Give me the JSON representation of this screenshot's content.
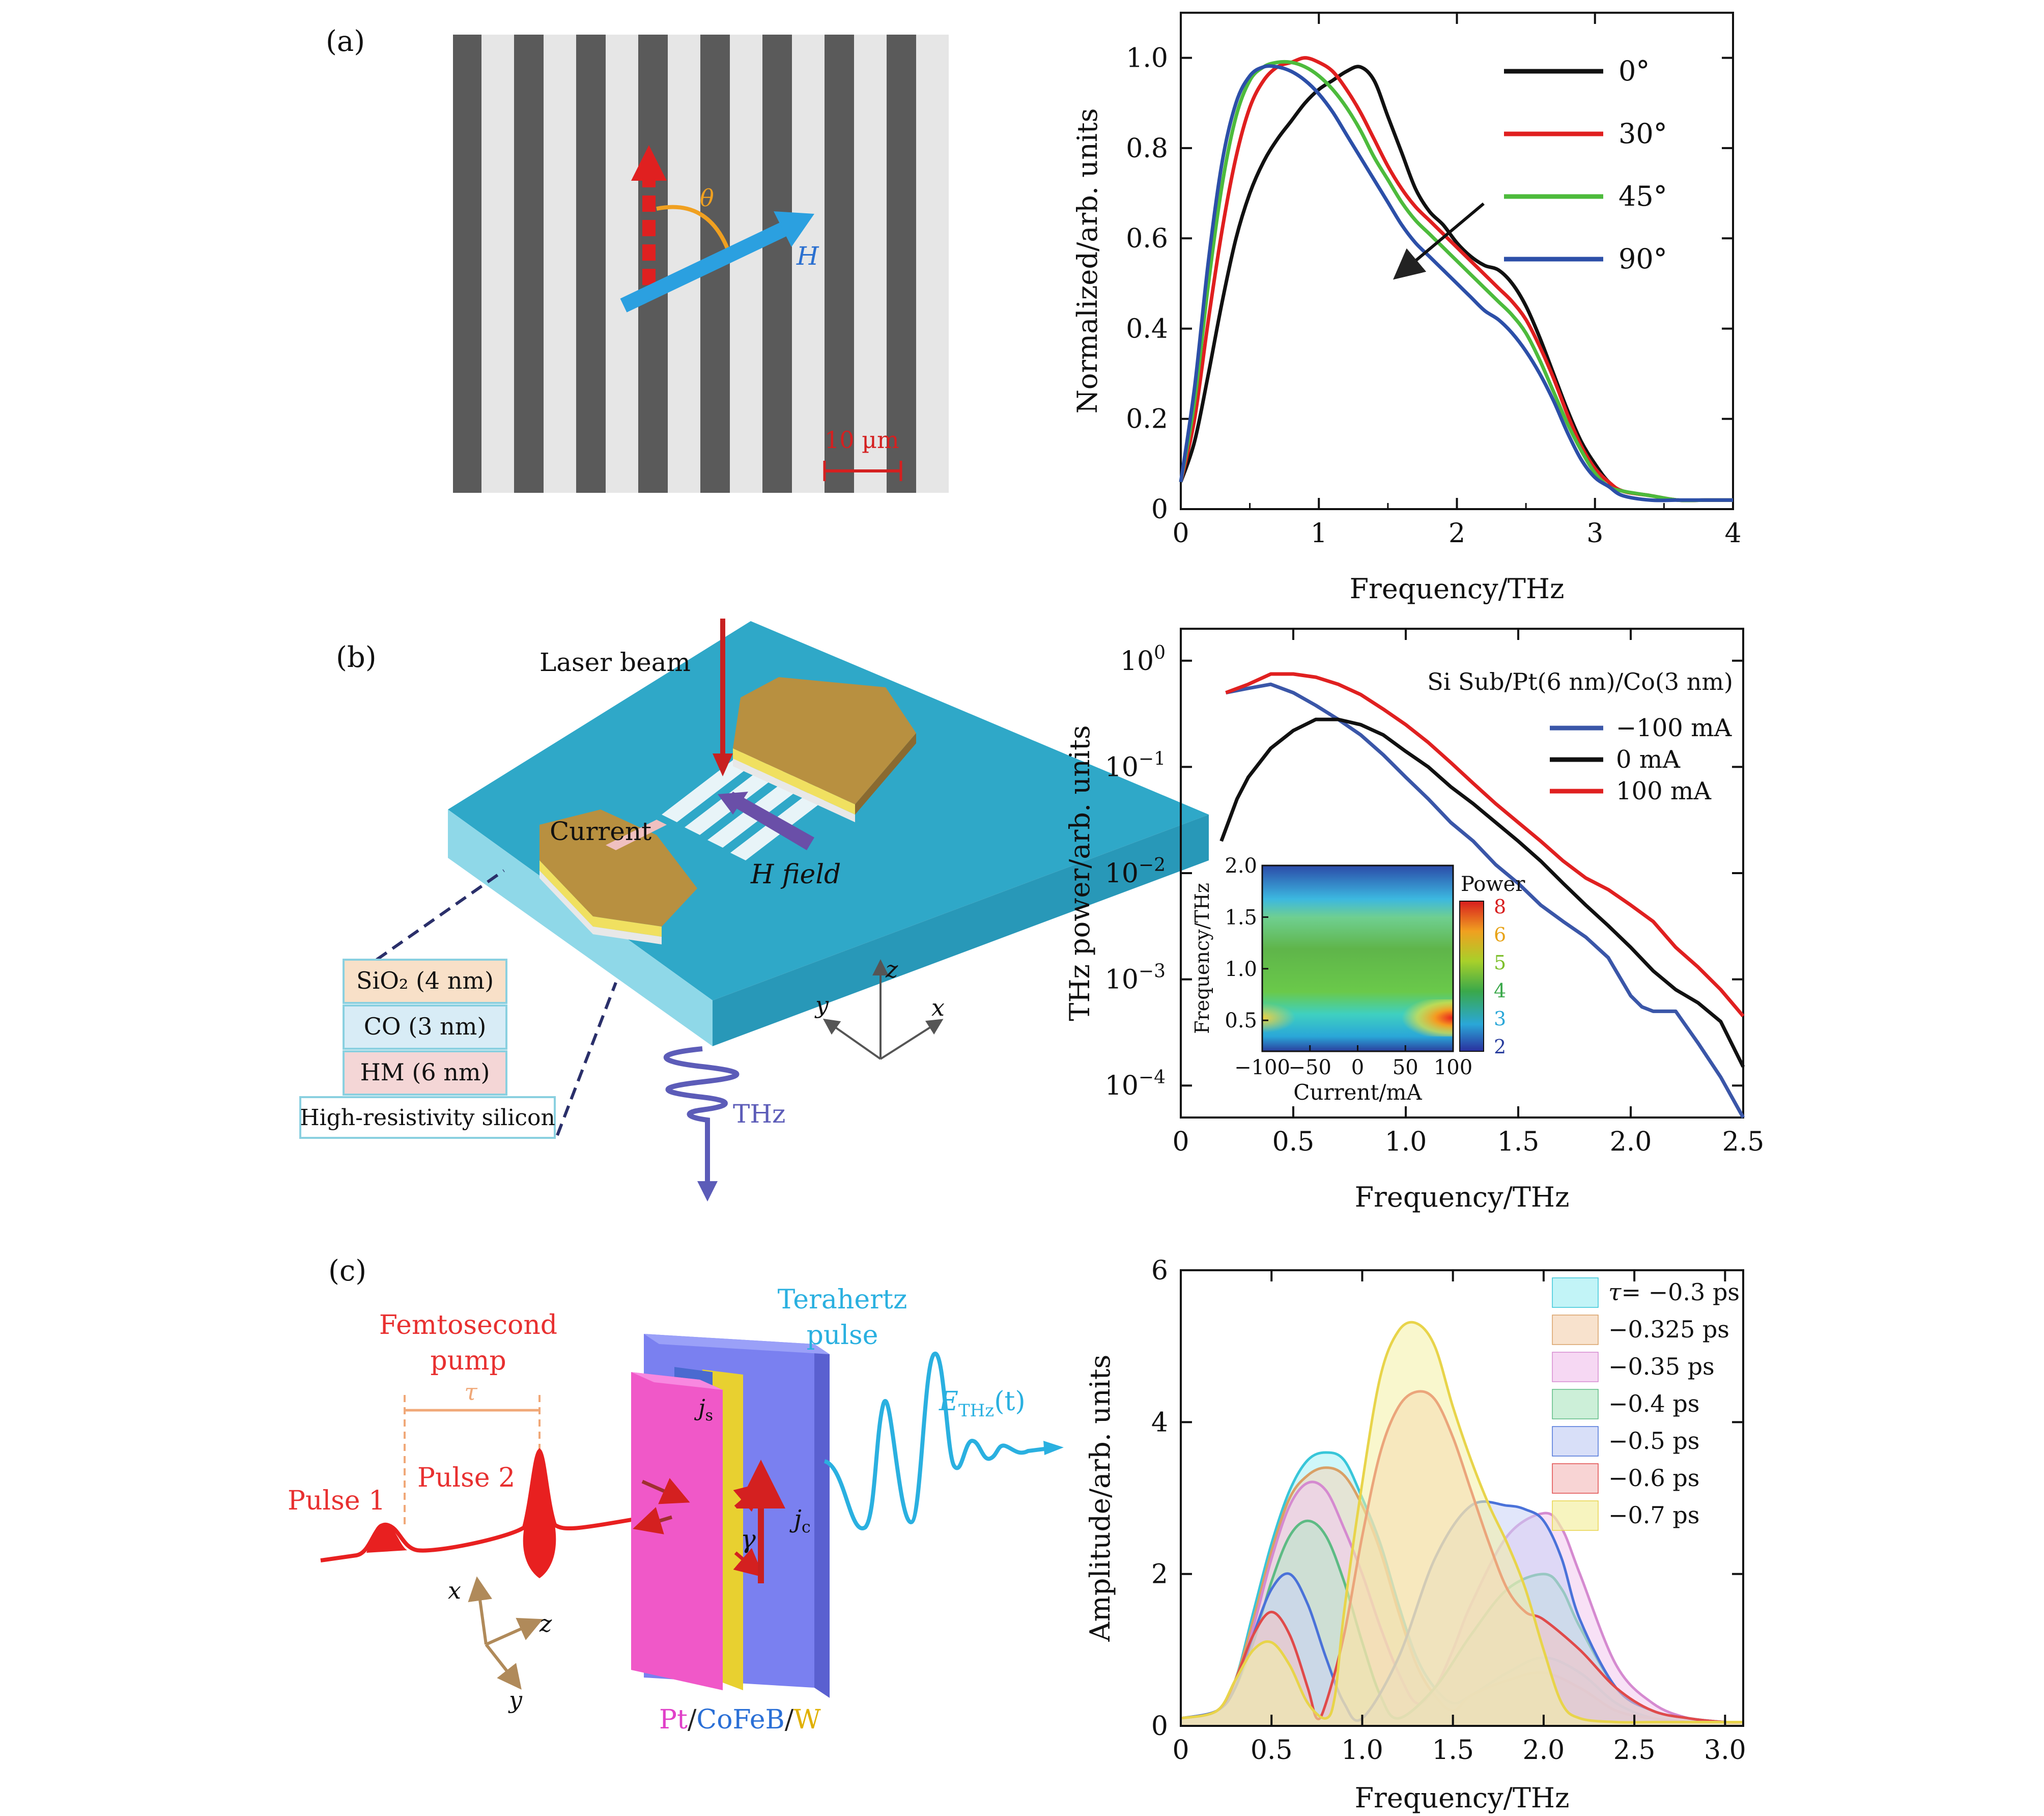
{
  "panel_labels": [
    "(a)",
    "(b)",
    "(c)"
  ],
  "panel_a_image": {
    "scale_bar_label": "10 µm",
    "theta_label": "θ",
    "field_label": "H"
  },
  "panel_b_image": {
    "laser_label": "Laser beam",
    "current_label": "Current",
    "hfield_label": "H field",
    "layers": [
      "SiO₂ (4 nm)",
      "CO (3 nm)",
      "HM (6 nm)",
      "High-resistivity silicon"
    ],
    "axes": [
      "z",
      "y",
      "x"
    ],
    "thz_label": "THz"
  },
  "panel_c_image": {
    "pump_line1": "Femtosecond",
    "pump_line2": "pump",
    "tau_label": "τ",
    "pulse1_label": "Pulse 1",
    "pulse2_label": "Pulse 2",
    "thz_line1": "Terahertz",
    "thz_line2": "pulse",
    "ethz_label": "E",
    "ethz_sub": "THz",
    "ethz_arg": "(t)",
    "js_label": "j",
    "js_sub": "s",
    "jc_label": "j",
    "jc_sub": "c",
    "gamma_label": "γ",
    "axes": [
      "x",
      "z",
      "y"
    ],
    "material_parts": [
      {
        "text": "Pt",
        "color": "#e040c8"
      },
      {
        "text": "/",
        "color": "#222222"
      },
      {
        "text": "CoFeB",
        "color": "#2a6fd6"
      },
      {
        "text": "/",
        "color": "#222222"
      },
      {
        "text": "W",
        "color": "#e0b000"
      }
    ]
  },
  "colors": {
    "black": "#111111",
    "red": "#e01f1f",
    "green": "#4dbb3c",
    "blue": "#2c4fa8",
    "navy": "#3a56a8",
    "crimson": "#e02020"
  },
  "chart_data": [
    {
      "type": "line",
      "xlabel": "Frequency/THz",
      "ylabel": "Normalized/arb. units",
      "xlim": [
        0,
        4
      ],
      "ylim": [
        0,
        1.1
      ],
      "xticks": [
        "0",
        "1",
        "2",
        "3",
        "4"
      ],
      "yticks": [
        "0",
        "0.2",
        "0.4",
        "0.6",
        "0.8",
        "1.0"
      ],
      "legend_position": "top-right",
      "series": [
        {
          "name": "0°",
          "color": "#111111",
          "x": [
            0,
            0.1,
            0.2,
            0.3,
            0.4,
            0.5,
            0.6,
            0.7,
            0.8,
            0.9,
            1.0,
            1.1,
            1.2,
            1.3,
            1.4,
            1.5,
            1.6,
            1.7,
            1.8,
            1.9,
            2.0,
            2.1,
            2.2,
            2.3,
            2.4,
            2.5,
            2.6,
            2.7,
            2.8,
            2.9,
            3.0,
            3.1,
            3.2,
            3.4,
            3.6,
            3.8,
            4.0
          ],
          "y": [
            0.06,
            0.15,
            0.3,
            0.46,
            0.6,
            0.7,
            0.77,
            0.82,
            0.86,
            0.9,
            0.93,
            0.95,
            0.97,
            0.98,
            0.95,
            0.87,
            0.79,
            0.71,
            0.66,
            0.63,
            0.59,
            0.56,
            0.54,
            0.53,
            0.5,
            0.45,
            0.38,
            0.3,
            0.22,
            0.15,
            0.1,
            0.06,
            0.04,
            0.03,
            0.02,
            0.02,
            0.02
          ]
        },
        {
          "name": "30°",
          "color": "#e01f1f",
          "x": [
            0,
            0.1,
            0.2,
            0.3,
            0.4,
            0.5,
            0.6,
            0.7,
            0.8,
            0.9,
            1.0,
            1.1,
            1.2,
            1.3,
            1.4,
            1.5,
            1.6,
            1.7,
            1.8,
            1.9,
            2.0,
            2.1,
            2.2,
            2.3,
            2.4,
            2.5,
            2.6,
            2.7,
            2.8,
            2.9,
            3.0,
            3.1,
            3.2,
            3.4,
            3.6,
            3.8,
            4.0
          ],
          "y": [
            0.06,
            0.2,
            0.42,
            0.62,
            0.78,
            0.89,
            0.95,
            0.98,
            0.99,
            1.0,
            0.99,
            0.97,
            0.93,
            0.88,
            0.82,
            0.76,
            0.71,
            0.67,
            0.64,
            0.61,
            0.58,
            0.55,
            0.52,
            0.49,
            0.46,
            0.42,
            0.36,
            0.29,
            0.21,
            0.14,
            0.09,
            0.06,
            0.04,
            0.03,
            0.02,
            0.02,
            0.02
          ]
        },
        {
          "name": "45°",
          "color": "#4dbb3c",
          "x": [
            0,
            0.1,
            0.2,
            0.3,
            0.4,
            0.5,
            0.6,
            0.7,
            0.8,
            0.9,
            1.0,
            1.1,
            1.2,
            1.3,
            1.4,
            1.5,
            1.6,
            1.7,
            1.8,
            1.9,
            2.0,
            2.1,
            2.2,
            2.3,
            2.4,
            2.5,
            2.6,
            2.7,
            2.8,
            2.9,
            3.0,
            3.1,
            3.2,
            3.4,
            3.6,
            3.8,
            4.0
          ],
          "y": [
            0.06,
            0.24,
            0.5,
            0.72,
            0.87,
            0.95,
            0.98,
            0.99,
            0.99,
            0.98,
            0.96,
            0.93,
            0.89,
            0.84,
            0.78,
            0.73,
            0.68,
            0.64,
            0.61,
            0.58,
            0.55,
            0.52,
            0.49,
            0.46,
            0.43,
            0.39,
            0.33,
            0.26,
            0.19,
            0.13,
            0.08,
            0.05,
            0.04,
            0.03,
            0.02,
            0.02,
            0.02
          ]
        },
        {
          "name": "90°",
          "color": "#2c4fa8",
          "x": [
            0,
            0.1,
            0.2,
            0.3,
            0.4,
            0.5,
            0.6,
            0.7,
            0.8,
            0.9,
            1.0,
            1.1,
            1.2,
            1.3,
            1.4,
            1.5,
            1.6,
            1.7,
            1.8,
            1.9,
            2.0,
            2.1,
            2.2,
            2.3,
            2.4,
            2.5,
            2.6,
            2.7,
            2.8,
            2.9,
            3.0,
            3.1,
            3.2,
            3.4,
            3.6,
            3.8,
            4.0
          ],
          "y": [
            0.06,
            0.27,
            0.55,
            0.77,
            0.9,
            0.96,
            0.98,
            0.98,
            0.97,
            0.95,
            0.92,
            0.88,
            0.83,
            0.78,
            0.73,
            0.68,
            0.63,
            0.59,
            0.56,
            0.53,
            0.5,
            0.47,
            0.44,
            0.42,
            0.39,
            0.35,
            0.3,
            0.24,
            0.17,
            0.11,
            0.07,
            0.05,
            0.03,
            0.02,
            0.02,
            0.02,
            0.02
          ]
        }
      ]
    },
    {
      "type": "line",
      "xlabel": "Frequency/THz",
      "ylabel": "THz power/arb. units",
      "y_scale": "log",
      "xlim": [
        0,
        2.5
      ],
      "ylim": [
        5e-05,
        2
      ],
      "xticks": [
        "0",
        "0.5",
        "1.0",
        "1.5",
        "2.0",
        "2.5"
      ],
      "yticks": [
        {
          "base": "10",
          "exp": "0"
        },
        {
          "base": "10",
          "exp": "−1"
        },
        {
          "base": "10",
          "exp": "−2"
        },
        {
          "base": "10",
          "exp": "−3"
        },
        {
          "base": "10",
          "exp": "−4"
        }
      ],
      "annotation": "Si Sub/Pt(6 nm)/Co(3 nm)",
      "legend_position": "top-right",
      "series": [
        {
          "name": "−100 mA",
          "color": "#3a56a8",
          "x": [
            0.2,
            0.3,
            0.4,
            0.5,
            0.6,
            0.7,
            0.8,
            0.9,
            1.0,
            1.1,
            1.2,
            1.3,
            1.4,
            1.5,
            1.6,
            1.7,
            1.8,
            1.9,
            2.0,
            2.05,
            2.1,
            2.2,
            2.3,
            2.4,
            2.5
          ],
          "y": [
            0.5,
            0.55,
            0.6,
            0.5,
            0.38,
            0.28,
            0.2,
            0.13,
            0.08,
            0.05,
            0.03,
            0.02,
            0.012,
            0.008,
            0.005,
            0.0035,
            0.0025,
            0.0016,
            0.0007,
            0.00055,
            0.0005,
            0.0005,
            0.00025,
            0.00012,
            5e-05
          ]
        },
        {
          "name": "0 mA",
          "color": "#111111",
          "x": [
            0.18,
            0.25,
            0.3,
            0.4,
            0.5,
            0.6,
            0.7,
            0.8,
            0.9,
            1.0,
            1.1,
            1.2,
            1.3,
            1.4,
            1.5,
            1.6,
            1.7,
            1.8,
            1.9,
            2.0,
            2.1,
            2.2,
            2.3,
            2.4,
            2.5
          ],
          "y": [
            0.02,
            0.05,
            0.08,
            0.15,
            0.22,
            0.28,
            0.28,
            0.25,
            0.2,
            0.14,
            0.1,
            0.065,
            0.045,
            0.03,
            0.02,
            0.013,
            0.008,
            0.005,
            0.0032,
            0.002,
            0.0012,
            0.0008,
            0.0006,
            0.0004,
            0.00015
          ]
        },
        {
          "name": "100 mA",
          "color": "#e02020",
          "x": [
            0.2,
            0.3,
            0.4,
            0.5,
            0.6,
            0.7,
            0.8,
            0.9,
            1.0,
            1.1,
            1.2,
            1.3,
            1.4,
            1.5,
            1.6,
            1.7,
            1.8,
            1.9,
            2.0,
            2.1,
            2.2,
            2.3,
            2.4,
            2.5
          ],
          "y": [
            0.5,
            0.6,
            0.75,
            0.75,
            0.7,
            0.6,
            0.48,
            0.35,
            0.25,
            0.17,
            0.11,
            0.07,
            0.045,
            0.03,
            0.02,
            0.013,
            0.009,
            0.007,
            0.005,
            0.0035,
            0.002,
            0.0013,
            0.0008,
            0.00045
          ]
        }
      ],
      "inset": {
        "type": "heatmap",
        "xlabel": "Current/mA",
        "ylabel": "Frequency/THz",
        "xlim": [
          -100,
          100
        ],
        "ylim": [
          0.2,
          2.0
        ],
        "xticks": [
          "−100",
          "−50",
          "0",
          "50",
          "100"
        ],
        "yticks": [
          "0.5",
          "1.0",
          "1.5",
          "2.0"
        ],
        "colorbar_label": "Power",
        "colorbar_ticks": [
          "2",
          "3",
          "4",
          "5",
          "6",
          "8"
        ],
        "colorbar_tick_colors": [
          "#2a3f9e",
          "#2aa7d8",
          "#3aa84a",
          "#7cbf2a",
          "#e8a317",
          "#d81e1e"
        ]
      }
    },
    {
      "type": "area",
      "xlabel": "Frequency/THz",
      "ylabel": "Amplitude/arb. units",
      "xlim": [
        0,
        3.1
      ],
      "ylim": [
        0,
        6
      ],
      "xticks": [
        "0",
        "0.5",
        "1.0",
        "1.5",
        "2.0",
        "2.5",
        "3.0"
      ],
      "yticks": [
        "0",
        "2",
        "4",
        "6"
      ],
      "legend_position": "top-right",
      "series": [
        {
          "name": "τ = −0.3 ps",
          "legend_prefix": "τ",
          "legend_value": "= −0.3 ps",
          "fill": "#a8f0f4",
          "stroke": "#38c6d9",
          "x": [
            0,
            0.2,
            0.3,
            0.4,
            0.5,
            0.6,
            0.7,
            0.8,
            0.9,
            1.0,
            1.1,
            1.2,
            1.3,
            1.4,
            1.5,
            1.6,
            1.8,
            2.0,
            2.2,
            2.4,
            2.6,
            2.8,
            3.0,
            3.1
          ],
          "y": [
            0.1,
            0.2,
            0.6,
            1.5,
            2.4,
            3.1,
            3.5,
            3.6,
            3.5,
            3.0,
            2.4,
            1.6,
            0.9,
            0.5,
            0.3,
            0.4,
            0.7,
            0.9,
            0.7,
            0.3,
            0.1,
            0.05,
            0.05,
            0.05
          ]
        },
        {
          "name": "−0.325 ps",
          "fill": "#f5d6b8",
          "stroke": "#d9a066",
          "x": [
            0,
            0.2,
            0.3,
            0.4,
            0.5,
            0.6,
            0.7,
            0.8,
            0.9,
            1.0,
            1.1,
            1.2,
            1.3,
            1.4,
            1.5,
            1.6,
            1.8,
            2.0,
            2.2,
            2.4,
            2.6,
            2.8,
            3.0,
            3.1
          ],
          "y": [
            0.1,
            0.2,
            0.6,
            1.4,
            2.3,
            3.0,
            3.3,
            3.4,
            3.3,
            2.9,
            2.3,
            1.5,
            0.8,
            0.4,
            0.2,
            0.4,
            0.6,
            0.7,
            0.5,
            0.2,
            0.1,
            0.05,
            0.05,
            0.05
          ]
        },
        {
          "name": "−0.35 ps",
          "fill": "#f2c8ee",
          "stroke": "#d58ad0",
          "x": [
            0,
            0.2,
            0.3,
            0.4,
            0.5,
            0.6,
            0.7,
            0.8,
            0.9,
            1.0,
            1.1,
            1.2,
            1.3,
            1.4,
            1.5,
            1.6,
            1.8,
            2.0,
            2.1,
            2.2,
            2.4,
            2.6,
            2.8,
            3.0,
            3.1
          ],
          "y": [
            0.1,
            0.2,
            0.5,
            1.3,
            2.2,
            2.9,
            3.2,
            3.1,
            2.6,
            2.0,
            1.3,
            0.7,
            0.3,
            0.5,
            1.0,
            1.6,
            2.5,
            2.8,
            2.6,
            2.0,
            0.8,
            0.3,
            0.1,
            0.05,
            0.05
          ]
        },
        {
          "name": "−0.4 ps",
          "fill": "#b6e8c8",
          "stroke": "#5dbb84",
          "x": [
            0,
            0.2,
            0.3,
            0.4,
            0.5,
            0.6,
            0.7,
            0.8,
            0.9,
            1.0,
            1.1,
            1.2,
            1.4,
            1.6,
            1.8,
            2.0,
            2.1,
            2.2,
            2.4,
            2.6,
            2.8,
            3.0,
            3.1
          ],
          "y": [
            0.1,
            0.2,
            0.5,
            1.1,
            1.9,
            2.5,
            2.7,
            2.5,
            1.9,
            1.1,
            0.4,
            0.1,
            0.5,
            1.2,
            1.8,
            2.0,
            1.8,
            1.3,
            0.5,
            0.2,
            0.1,
            0.05,
            0.05
          ]
        },
        {
          "name": "−0.5 ps",
          "fill": "#c8d2f5",
          "stroke": "#4a72d9",
          "x": [
            0,
            0.2,
            0.3,
            0.4,
            0.5,
            0.6,
            0.7,
            0.8,
            0.9,
            1.0,
            1.2,
            1.4,
            1.6,
            1.8,
            1.9,
            2.0,
            2.1,
            2.2,
            2.4,
            2.6,
            2.8,
            3.0,
            3.1
          ],
          "y": [
            0.1,
            0.2,
            0.5,
            1.2,
            1.8,
            2.0,
            1.6,
            0.9,
            0.3,
            0.1,
            0.9,
            2.2,
            2.9,
            2.9,
            2.85,
            2.7,
            2.2,
            1.4,
            0.5,
            0.2,
            0.1,
            0.05,
            0.05
          ]
        },
        {
          "name": "−0.6 ps",
          "fill": "#f5c2c2",
          "stroke": "#e04a4a",
          "x": [
            0,
            0.2,
            0.3,
            0.4,
            0.5,
            0.6,
            0.7,
            0.75,
            0.8,
            0.9,
            1.0,
            1.1,
            1.2,
            1.3,
            1.4,
            1.5,
            1.6,
            1.7,
            1.8,
            1.9,
            2.0,
            2.2,
            2.4,
            2.6,
            2.8,
            3.0,
            3.1
          ],
          "y": [
            0.1,
            0.2,
            0.6,
            1.2,
            1.5,
            1.2,
            0.5,
            0.1,
            0.3,
            1.2,
            2.5,
            3.6,
            4.2,
            4.4,
            4.3,
            3.8,
            3.1,
            2.4,
            1.8,
            1.5,
            1.4,
            1.0,
            0.5,
            0.2,
            0.1,
            0.05,
            0.05
          ]
        },
        {
          "name": "−0.7 ps",
          "fill": "#f4f0a4",
          "stroke": "#e8d44a",
          "x": [
            0,
            0.2,
            0.3,
            0.4,
            0.5,
            0.6,
            0.7,
            0.8,
            0.85,
            0.9,
            1.0,
            1.1,
            1.2,
            1.3,
            1.4,
            1.5,
            1.6,
            1.7,
            1.8,
            1.9,
            2.0,
            2.1,
            2.2,
            2.4,
            2.6,
            2.8,
            3.0,
            3.1
          ],
          "y": [
            0.1,
            0.2,
            0.6,
            1.0,
            1.1,
            0.8,
            0.3,
            0.1,
            0.4,
            1.5,
            3.2,
            4.6,
            5.2,
            5.3,
            5.0,
            4.2,
            3.5,
            2.9,
            2.4,
            1.8,
            1.0,
            0.3,
            0.1,
            0.05,
            0.05,
            0.05,
            0.05,
            0.05
          ]
        }
      ]
    }
  ]
}
